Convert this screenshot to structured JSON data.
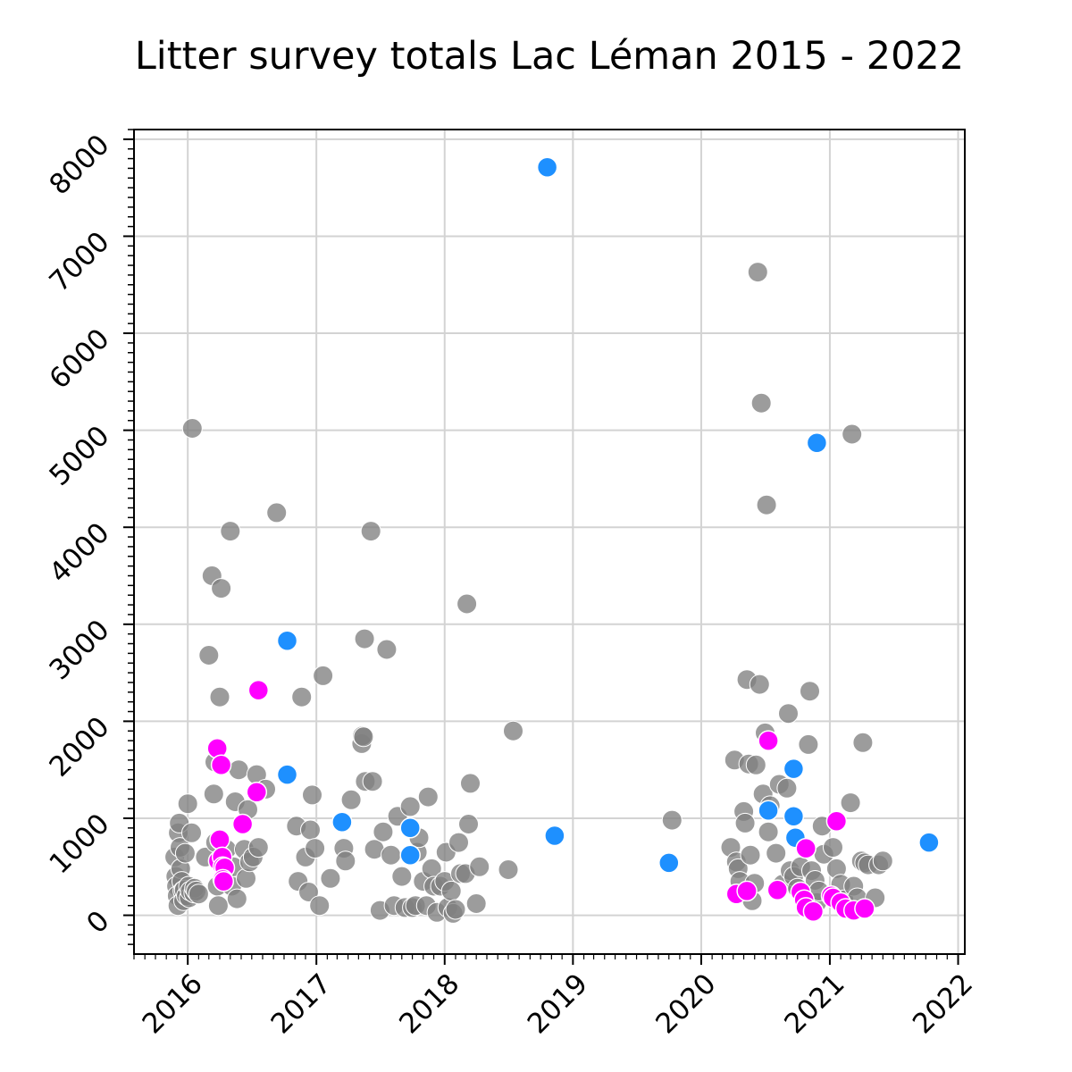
{
  "chart_data": {
    "type": "scatter",
    "title": "Litter survey totals Lac Léman 2015 - 2022",
    "xlabel": "",
    "ylabel": "",
    "xlim": [
      "2015-08-01",
      "2022-01-20"
    ],
    "ylim": [
      -400,
      8100
    ],
    "x_ticks": [
      "2016",
      "2017",
      "2018",
      "2019",
      "2020",
      "2021",
      "2022"
    ],
    "y_ticks": [
      0,
      1000,
      2000,
      3000,
      4000,
      5000,
      6000,
      7000,
      8000
    ],
    "grid": true,
    "legend": "none",
    "colors": {
      "series_1": "#808080",
      "series_2": "#1e90ff",
      "series_3": "#ff00ff"
    },
    "series": [
      {
        "color": "#808080",
        "points": [
          [
            "2015-11-25",
            600
          ],
          [
            "2015-11-28",
            400
          ],
          [
            "2015-11-30",
            300
          ],
          [
            "2015-12-02",
            200
          ],
          [
            "2015-12-04",
            100
          ],
          [
            "2015-12-05",
            850
          ],
          [
            "2015-12-08",
            950
          ],
          [
            "2015-12-10",
            700
          ],
          [
            "2015-12-12",
            480
          ],
          [
            "2015-12-15",
            350
          ],
          [
            "2015-12-18",
            250
          ],
          [
            "2015-12-20",
            150
          ],
          [
            "2015-12-22",
            260
          ],
          [
            "2015-12-25",
            640
          ],
          [
            "2015-12-28",
            200
          ],
          [
            "2016-01-01",
            1150
          ],
          [
            "2016-01-03",
            300
          ],
          [
            "2016-01-05",
            180
          ],
          [
            "2016-01-08",
            250
          ],
          [
            "2016-01-12",
            850
          ],
          [
            "2016-01-14",
            5020
          ],
          [
            "2016-01-18",
            230
          ],
          [
            "2016-01-20",
            280
          ],
          [
            "2016-01-25",
            250
          ],
          [
            "2016-02-01",
            220
          ],
          [
            "2016-02-20",
            600
          ],
          [
            "2016-03-01",
            2680
          ],
          [
            "2016-03-10",
            3500
          ],
          [
            "2016-03-15",
            1250
          ],
          [
            "2016-03-18",
            1580
          ],
          [
            "2016-03-20",
            750
          ],
          [
            "2016-03-25",
            300
          ],
          [
            "2016-03-28",
            100
          ],
          [
            "2016-04-01",
            2250
          ],
          [
            "2016-04-05",
            3370
          ],
          [
            "2016-04-10",
            550
          ],
          [
            "2016-04-15",
            400
          ],
          [
            "2016-04-20",
            680
          ],
          [
            "2016-05-01",
            3960
          ],
          [
            "2016-05-05",
            300
          ],
          [
            "2016-05-10",
            500
          ],
          [
            "2016-05-15",
            1170
          ],
          [
            "2016-05-20",
            170
          ],
          [
            "2016-05-25",
            1500
          ],
          [
            "2016-06-10",
            680
          ],
          [
            "2016-06-15",
            380
          ],
          [
            "2016-06-20",
            1090
          ],
          [
            "2016-06-25",
            550
          ],
          [
            "2016-07-05",
            600
          ],
          [
            "2016-07-15",
            1450
          ],
          [
            "2016-07-20",
            700
          ],
          [
            "2016-08-10",
            1300
          ],
          [
            "2016-09-10",
            4150
          ],
          [
            "2016-11-05",
            920
          ],
          [
            "2016-11-10",
            350
          ],
          [
            "2016-11-20",
            2250
          ],
          [
            "2016-12-01",
            600
          ],
          [
            "2016-12-10",
            240
          ],
          [
            "2016-12-15",
            880
          ],
          [
            "2016-12-20",
            1240
          ],
          [
            "2016-12-28",
            690
          ],
          [
            "2017-01-10",
            100
          ],
          [
            "2017-01-20",
            2470
          ],
          [
            "2017-02-10",
            380
          ],
          [
            "2017-03-20",
            690
          ],
          [
            "2017-03-25",
            560
          ],
          [
            "2017-04-10",
            1190
          ],
          [
            "2017-05-10",
            1770
          ],
          [
            "2017-05-12",
            1850
          ],
          [
            "2017-05-15",
            1840
          ],
          [
            "2017-05-18",
            2850
          ],
          [
            "2017-05-20",
            1380
          ],
          [
            "2017-06-10",
            1380
          ],
          [
            "2017-06-05",
            3960
          ],
          [
            "2017-06-15",
            680
          ],
          [
            "2017-07-01",
            50
          ],
          [
            "2017-07-10",
            860
          ],
          [
            "2017-07-20",
            2740
          ],
          [
            "2017-08-01",
            620
          ],
          [
            "2017-08-10",
            100
          ],
          [
            "2017-08-20",
            1020
          ],
          [
            "2017-09-01",
            400
          ],
          [
            "2017-09-10",
            80
          ],
          [
            "2017-09-25",
            1120
          ],
          [
            "2017-10-01",
            80
          ],
          [
            "2017-10-10",
            100
          ],
          [
            "2017-10-15",
            650
          ],
          [
            "2017-10-20",
            800
          ],
          [
            "2017-11-01",
            350
          ],
          [
            "2017-11-10",
            100
          ],
          [
            "2017-11-15",
            1220
          ],
          [
            "2017-11-25",
            480
          ],
          [
            "2017-12-01",
            300
          ],
          [
            "2017-12-10",
            30
          ],
          [
            "2017-12-20",
            300
          ],
          [
            "2018-01-01",
            350
          ],
          [
            "2018-01-05",
            650
          ],
          [
            "2018-01-10",
            80
          ],
          [
            "2018-01-20",
            250
          ],
          [
            "2018-01-25",
            20
          ],
          [
            "2018-02-01",
            60
          ],
          [
            "2018-02-10",
            750
          ],
          [
            "2018-02-15",
            430
          ],
          [
            "2018-03-01",
            430
          ],
          [
            "2018-03-10",
            940
          ],
          [
            "2018-03-15",
            1360
          ],
          [
            "2018-03-05",
            3210
          ],
          [
            "2018-04-01",
            120
          ],
          [
            "2018-04-10",
            500
          ],
          [
            "2018-07-01",
            470
          ],
          [
            "2018-07-15",
            1900
          ],
          [
            "2019-10-10",
            980
          ],
          [
            "2020-03-25",
            700
          ],
          [
            "2020-04-05",
            1600
          ],
          [
            "2020-04-10",
            550
          ],
          [
            "2020-04-15",
            480
          ],
          [
            "2020-04-20",
            350
          ],
          [
            "2020-05-01",
            1070
          ],
          [
            "2020-05-05",
            950
          ],
          [
            "2020-05-10",
            2430
          ],
          [
            "2020-05-15",
            1560
          ],
          [
            "2020-05-20",
            620
          ],
          [
            "2020-05-25",
            150
          ],
          [
            "2020-06-01",
            330
          ],
          [
            "2020-06-05",
            1550
          ],
          [
            "2020-06-10",
            6630
          ],
          [
            "2020-06-15",
            2380
          ],
          [
            "2020-06-20",
            5280
          ],
          [
            "2020-06-25",
            1250
          ],
          [
            "2020-07-01",
            1880
          ],
          [
            "2020-07-05",
            4230
          ],
          [
            "2020-07-10",
            860
          ],
          [
            "2020-07-15",
            1130
          ],
          [
            "2020-08-01",
            640
          ],
          [
            "2020-08-10",
            1350
          ],
          [
            "2020-08-20",
            320
          ],
          [
            "2020-09-01",
            1310
          ],
          [
            "2020-09-05",
            2080
          ],
          [
            "2020-09-10",
            460
          ],
          [
            "2020-09-20",
            400
          ],
          [
            "2020-10-01",
            280
          ],
          [
            "2020-10-10",
            500
          ],
          [
            "2020-11-01",
            1760
          ],
          [
            "2020-11-05",
            2310
          ],
          [
            "2020-11-10",
            460
          ],
          [
            "2020-11-20",
            360
          ],
          [
            "2020-11-25",
            130
          ],
          [
            "2020-12-01",
            250
          ],
          [
            "2020-12-10",
            920
          ],
          [
            "2020-12-15",
            630
          ],
          [
            "2021-01-10",
            700
          ],
          [
            "2021-01-20",
            480
          ],
          [
            "2021-02-01",
            320
          ],
          [
            "2021-02-10",
            160
          ],
          [
            "2021-03-01",
            1160
          ],
          [
            "2021-03-05",
            4960
          ],
          [
            "2021-03-10",
            300
          ],
          [
            "2021-03-20",
            180
          ],
          [
            "2021-04-01",
            560
          ],
          [
            "2021-04-05",
            1780
          ],
          [
            "2021-04-10",
            540
          ],
          [
            "2021-04-20",
            520
          ],
          [
            "2021-05-10",
            180
          ],
          [
            "2021-05-20",
            520
          ],
          [
            "2021-06-01",
            560
          ]
        ]
      },
      {
        "color": "#1e90ff",
        "points": [
          [
            "2016-10-10",
            2830
          ],
          [
            "2016-10-10",
            1450
          ],
          [
            "2017-03-15",
            960
          ],
          [
            "2017-09-25",
            900
          ],
          [
            "2017-09-25",
            620
          ],
          [
            "2018-10-20",
            7710
          ],
          [
            "2018-11-10",
            820
          ],
          [
            "2019-10-01",
            540
          ],
          [
            "2020-07-10",
            1080
          ],
          [
            "2020-09-20",
            1510
          ],
          [
            "2020-09-20",
            1020
          ],
          [
            "2020-09-25",
            800
          ],
          [
            "2020-11-25",
            4870
          ],
          [
            "2021-10-10",
            750
          ]
        ]
      },
      {
        "color": "#ff00ff",
        "points": [
          [
            "2016-03-25",
            1720
          ],
          [
            "2016-04-05",
            1550
          ],
          [
            "2016-04-01",
            780
          ],
          [
            "2016-03-28",
            560
          ],
          [
            "2016-04-08",
            600
          ],
          [
            "2016-04-10",
            500
          ],
          [
            "2016-04-15",
            490
          ],
          [
            "2016-04-10",
            370
          ],
          [
            "2016-04-12",
            350
          ],
          [
            "2016-06-05",
            940
          ],
          [
            "2016-07-15",
            1270
          ],
          [
            "2016-07-20",
            2320
          ],
          [
            "2020-04-10",
            220
          ],
          [
            "2020-05-10",
            250
          ],
          [
            "2020-07-10",
            1800
          ],
          [
            "2020-08-05",
            260
          ],
          [
            "2020-10-10",
            240
          ],
          [
            "2020-10-20",
            160
          ],
          [
            "2020-10-25",
            80
          ],
          [
            "2020-11-15",
            40
          ],
          [
            "2020-10-25",
            690
          ],
          [
            "2021-01-05",
            200
          ],
          [
            "2021-01-10",
            180
          ],
          [
            "2021-01-20",
            970
          ],
          [
            "2021-02-01",
            130
          ],
          [
            "2021-02-15",
            70
          ],
          [
            "2021-03-10",
            50
          ],
          [
            "2021-04-10",
            70
          ]
        ]
      }
    ]
  }
}
